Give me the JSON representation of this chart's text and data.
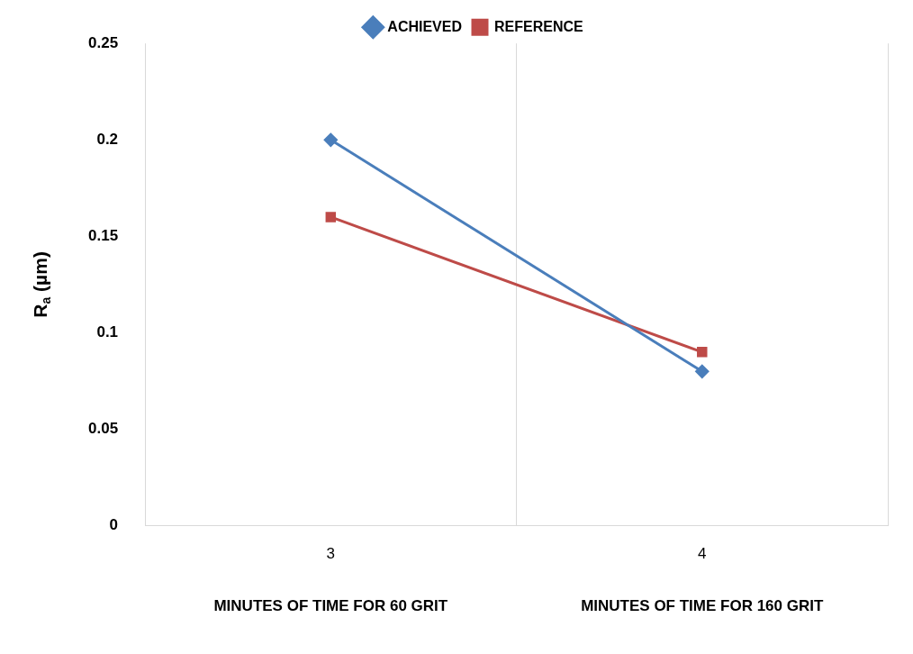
{
  "chart_data": {
    "type": "line",
    "ylabel": "R$_{a}$ (µm)",
    "categories": [
      "3",
      "4"
    ],
    "annotations": [
      "MINUTES OF TIME FOR 60 GRIT",
      "MINUTES OF TIME FOR 160 GRIT"
    ],
    "series": [
      {
        "name": "ACHIEVED",
        "color": "#4a7ebb",
        "values": [
          0.2,
          0.08
        ],
        "marker": "diamond"
      },
      {
        "name": "REFERENCE",
        "color": "#be4b48",
        "values": [
          0.16,
          0.09
        ],
        "marker": "square"
      }
    ],
    "ylim": [
      0,
      0.25
    ],
    "yticks": [
      0,
      0.05,
      0.1,
      0.15,
      0.2,
      0.25
    ],
    "grid": "x",
    "legend": "top",
    "line_style": "solid"
  }
}
